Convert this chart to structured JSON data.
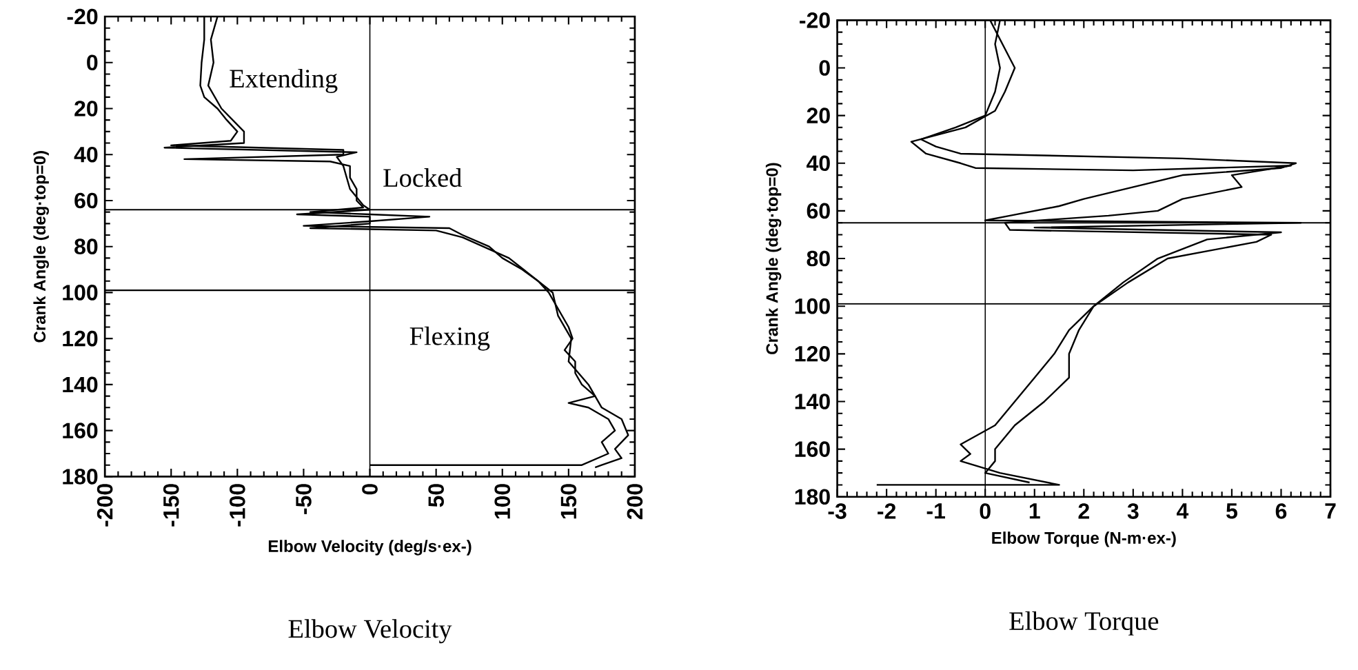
{
  "chart_data": [
    {
      "type": "line",
      "title": "Elbow Velocity",
      "xlabel": "Elbow Velocity  (deg/s·ex-)",
      "ylabel": "Crank Angle  (deg·top=0)",
      "xlim": [
        -200,
        200
      ],
      "ylim": [
        180,
        -20
      ],
      "xticks": [
        -200,
        -150,
        -100,
        -50,
        0,
        50,
        100,
        150,
        200
      ],
      "yticks": [
        -20,
        0,
        20,
        40,
        60,
        80,
        100,
        120,
        140,
        160,
        180
      ],
      "grid": false,
      "annotations": [
        "Extending",
        "Locked",
        "Flexing"
      ],
      "ref_lines": [
        {
          "axis": "y",
          "value": 64
        },
        {
          "axis": "y",
          "value": 99
        },
        {
          "axis": "x",
          "value": 0
        }
      ],
      "series": [
        {
          "color": "#000000",
          "x": [
            -125,
            -125,
            -127,
            -128,
            -125,
            -115,
            -108,
            -100,
            -105,
            -150,
            -20,
            -20,
            -140,
            -30,
            -15,
            -15,
            -10,
            -10,
            -5,
            -45,
            0,
            45,
            0,
            -50,
            60,
            70,
            90,
            100,
            115,
            127,
            135,
            140,
            145,
            150,
            153,
            147,
            155,
            155,
            160,
            170,
            150,
            165,
            180,
            185,
            175,
            180,
            160,
            0
          ],
          "values": [
            -20,
            -10,
            0,
            10,
            15,
            20,
            25,
            30,
            34,
            36,
            38,
            40,
            42,
            43,
            45,
            50,
            55,
            60,
            63,
            65,
            66,
            67,
            69,
            71,
            72,
            75,
            80,
            85,
            90,
            95,
            100,
            105,
            110,
            115,
            120,
            125,
            130,
            135,
            140,
            145,
            148,
            150,
            155,
            160,
            165,
            170,
            175,
            175
          ]
        },
        {
          "color": "#000000",
          "x": [
            -115,
            -120,
            -118,
            -122,
            -112,
            -95,
            -95,
            -155,
            -10,
            -25,
            -20,
            -15,
            -5,
            0,
            -55,
            0,
            0,
            -45,
            50,
            70,
            105,
            138,
            142,
            152,
            150,
            165,
            175,
            190,
            195,
            185,
            190,
            175,
            170
          ],
          "values": [
            -20,
            -10,
            0,
            10,
            20,
            30,
            35,
            37,
            39,
            41,
            45,
            55,
            62,
            64,
            66,
            67,
            70,
            72,
            73,
            76,
            85,
            100,
            110,
            120,
            130,
            140,
            150,
            155,
            162,
            168,
            172,
            175,
            176
          ]
        }
      ]
    },
    {
      "type": "line",
      "title": "Elbow Torque",
      "xlabel": "Elbow Torque  (N-m·ex-)",
      "ylabel": "Crank Angle  (deg·top=0)",
      "xlim": [
        -3,
        7
      ],
      "ylim": [
        180,
        -20
      ],
      "xticks": [
        -3,
        -2,
        -1,
        0,
        1,
        2,
        3,
        4,
        5,
        6,
        7
      ],
      "yticks": [
        -20,
        0,
        20,
        40,
        60,
        80,
        100,
        120,
        140,
        160,
        180
      ],
      "grid": false,
      "ref_lines": [
        {
          "axis": "y",
          "value": 65
        },
        {
          "axis": "y",
          "value": 99
        },
        {
          "axis": "x",
          "value": 0
        }
      ],
      "series": [
        {
          "color": "#000000",
          "x": [
            0.3,
            0.2,
            0.3,
            0.2,
            0,
            -0.6,
            -1.3,
            -1.0,
            -0.5,
            4,
            6.3,
            6,
            4,
            3,
            2,
            1.5,
            0.5,
            0,
            6.4,
            1,
            6,
            4.5,
            3.5,
            2.8,
            2.2,
            1.7,
            1.4,
            1.0,
            0.6,
            0.2,
            -0.5,
            -0.3,
            -0.5,
            0.3,
            1.5,
            -2.2
          ],
          "values": [
            -20,
            -10,
            0,
            10,
            20,
            25,
            30,
            33,
            36,
            38,
            40,
            42,
            45,
            50,
            55,
            58,
            62,
            64,
            65,
            67,
            69,
            72,
            80,
            90,
            100,
            110,
            120,
            130,
            140,
            150,
            158,
            162,
            165,
            170,
            175,
            175
          ]
        },
        {
          "color": "#000000",
          "x": [
            0.1,
            0.6,
            0.4,
            0.2,
            -0.4,
            -1.5,
            -1.2,
            -0.5,
            -0.2,
            3,
            6.2,
            5,
            5.2,
            4,
            3.5,
            2.5,
            0.4,
            0.5,
            5.8,
            5.5,
            3.7,
            2.9,
            2.2,
            1.9,
            1.7,
            1.7,
            1.2,
            0.6,
            0.2,
            0.2,
            0,
            0.9
          ],
          "values": [
            -20,
            0,
            10,
            18,
            25,
            31,
            36,
            40,
            42,
            43,
            41,
            45,
            50,
            55,
            60,
            62,
            65,
            68,
            70,
            73,
            80,
            90,
            100,
            110,
            120,
            130,
            140,
            150,
            160,
            165,
            170,
            174
          ]
        }
      ]
    }
  ]
}
